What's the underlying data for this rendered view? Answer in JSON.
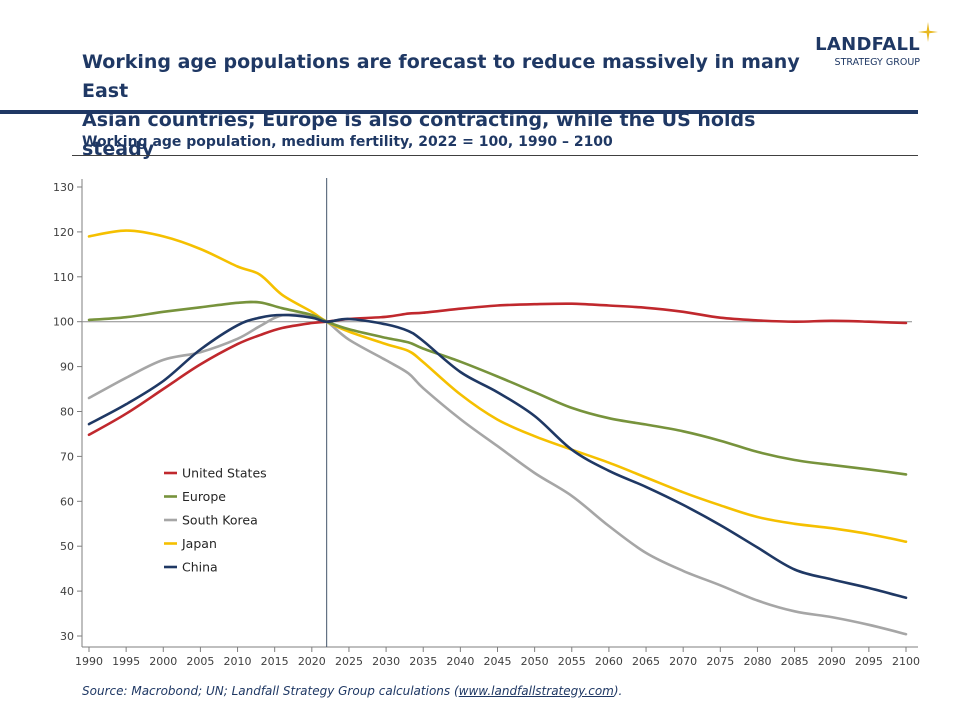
{
  "header": {
    "title_line1": "Working age populations are forecast to reduce massively in many East",
    "title_line2": "Asian countries; Europe is also contracting, while the US holds steady",
    "subtitle": "Working age population, medium fertility, 2022 = 100, 1990 – 2100"
  },
  "logo": {
    "name": "LANDFALL",
    "tagline": "STRATEGY GROUP",
    "color": "#1f3864",
    "star_color": "#e8b923"
  },
  "footer": {
    "source_prefix": "Source: Macrobond; UN; Landfall Strategy Group calculations (",
    "source_link": "www.landfallstrategy.com",
    "source_suffix": ")."
  },
  "chart_data": {
    "type": "line",
    "title": "Working age population, medium fertility, 2022 = 100, 1990 – 2100",
    "xlabel": "",
    "ylabel": "",
    "xlim": [
      1990,
      2100
    ],
    "ylim": [
      30,
      130
    ],
    "x_ticks": [
      1990,
      1995,
      2000,
      2005,
      2010,
      2015,
      2020,
      2025,
      2030,
      2035,
      2040,
      2045,
      2050,
      2055,
      2060,
      2065,
      2070,
      2075,
      2080,
      2085,
      2090,
      2095,
      2100
    ],
    "y_ticks": [
      30,
      40,
      50,
      60,
      70,
      80,
      90,
      100,
      110,
      120,
      130
    ],
    "reference_line_y": 100,
    "reference_line_x": 2022,
    "grid": false,
    "legend_position": "bottom-left",
    "x": [
      1990,
      1995,
      2000,
      2005,
      2010,
      2013,
      2016,
      2020,
      2022,
      2025,
      2030,
      2033,
      2035,
      2040,
      2045,
      2050,
      2055,
      2060,
      2065,
      2070,
      2075,
      2080,
      2085,
      2090,
      2095,
      2100
    ],
    "series": [
      {
        "name": "United States",
        "color": "#c0282d",
        "values": [
          74.8,
          79.5,
          85,
          90.5,
          95,
          97,
          98.6,
          99.7,
          100,
          100.6,
          101.1,
          101.8,
          102,
          102.9,
          103.6,
          103.9,
          104,
          103.6,
          103.1,
          102.2,
          100.9,
          100.3,
          100,
          100.2,
          100,
          99.7
        ]
      },
      {
        "name": "Europe",
        "color": "#77933c",
        "values": [
          100.4,
          101,
          102.2,
          103.2,
          104.2,
          104.3,
          103,
          101.5,
          100,
          98.3,
          96.4,
          95.4,
          94,
          91.1,
          87.8,
          84.3,
          80.8,
          78.5,
          77.1,
          75.6,
          73.5,
          71,
          69.2,
          68.1,
          67.1,
          66
        ]
      },
      {
        "name": "South Korea",
        "color": "#a6a6a6",
        "values": [
          83,
          87.5,
          91.5,
          93.2,
          96.2,
          99,
          101.4,
          101.2,
          100,
          96,
          91.4,
          88.5,
          85.2,
          78.3,
          72.3,
          66.3,
          61.2,
          54.5,
          48.5,
          44.5,
          41.3,
          37.9,
          35.5,
          34.2,
          32.5,
          30.4
        ]
      },
      {
        "name": "Japan",
        "color": "#f5c000",
        "values": [
          119,
          120.3,
          119,
          116.2,
          112.3,
          110.5,
          106,
          102.2,
          100,
          97.8,
          95,
          93.5,
          91,
          83.8,
          78.2,
          74.5,
          71.5,
          68.6,
          65.3,
          62,
          59.1,
          56.5,
          55,
          54,
          52.7,
          51
        ]
      },
      {
        "name": "China",
        "color": "#1f3864",
        "values": [
          77.2,
          81.6,
          86.8,
          93.8,
          99.2,
          100.9,
          101.5,
          100.9,
          100,
          100.6,
          99.4,
          97.9,
          95.7,
          88.8,
          84.3,
          79,
          71.5,
          66.8,
          63.2,
          59.2,
          54.7,
          49.7,
          44.8,
          42.6,
          40.7,
          38.5
        ]
      }
    ]
  }
}
